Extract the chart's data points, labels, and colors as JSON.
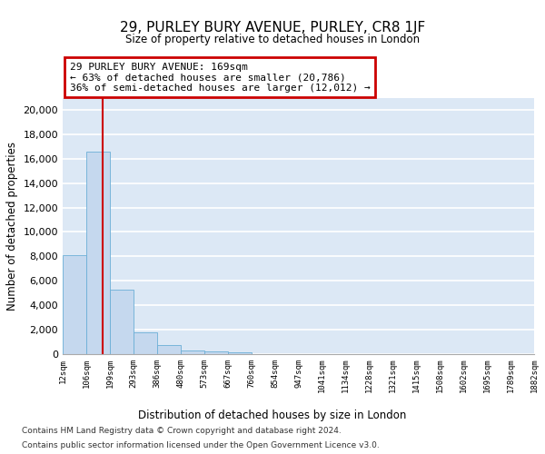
{
  "title": "29, PURLEY BURY AVENUE, PURLEY, CR8 1JF",
  "subtitle": "Size of property relative to detached houses in London",
  "xlabel": "Distribution of detached houses by size in London",
  "ylabel": "Number of detached properties",
  "property_address": "29 PURLEY BURY AVENUE: 169sqm",
  "annotation_line1": "← 63% of detached houses are smaller (20,786)",
  "annotation_line2": "36% of semi-detached houses are larger (12,012) →",
  "property_size": 169,
  "bar_color": "#c5d8ee",
  "bar_edge_color": "#6baed6",
  "property_line_color": "#cc0000",
  "annotation_box_color": "#cc0000",
  "bin_edges": [
    12,
    106,
    199,
    293,
    386,
    480,
    573,
    667,
    760,
    854,
    947,
    1041,
    1134,
    1228,
    1321,
    1415,
    1508,
    1602,
    1695,
    1789,
    1882
  ],
  "bin_labels": [
    "12sqm",
    "106sqm",
    "199sqm",
    "293sqm",
    "386sqm",
    "480sqm",
    "573sqm",
    "667sqm",
    "760sqm",
    "854sqm",
    "947sqm",
    "1041sqm",
    "1134sqm",
    "1228sqm",
    "1321sqm",
    "1415sqm",
    "1508sqm",
    "1602sqm",
    "1695sqm",
    "1789sqm",
    "1882sqm"
  ],
  "bar_heights": [
    8100,
    16600,
    5300,
    1750,
    750,
    280,
    200,
    170,
    0,
    0,
    0,
    0,
    0,
    0,
    0,
    0,
    0,
    0,
    0,
    0
  ],
  "ylim": [
    0,
    21000
  ],
  "yticks": [
    0,
    2000,
    4000,
    6000,
    8000,
    10000,
    12000,
    14000,
    16000,
    18000,
    20000
  ],
  "footer_line1": "Contains HM Land Registry data © Crown copyright and database right 2024.",
  "footer_line2": "Contains public sector information licensed under the Open Government Licence v3.0.",
  "bg_color": "#dce8f5",
  "grid_color": "#ffffff"
}
